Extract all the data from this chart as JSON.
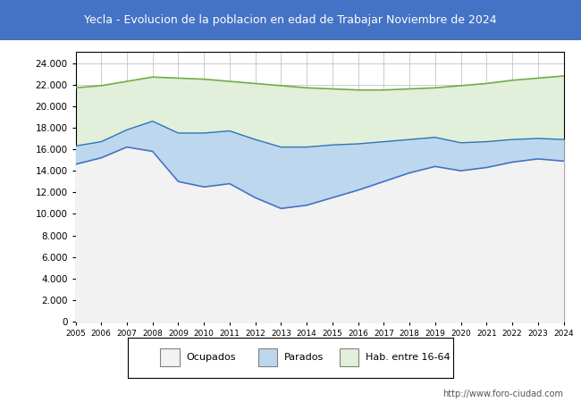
{
  "title": "Yecla - Evolucion de la poblacion en edad de Trabajar Noviembre de 2024",
  "title_bg": "#4472c4",
  "title_color": "white",
  "footer_text": "http://www.foro-ciudad.com",
  "legend_items": [
    "Ocupados",
    "Parados",
    "Hab. entre 16-64"
  ],
  "years": [
    2005,
    2006,
    2007,
    2008,
    2009,
    2010,
    2011,
    2012,
    2013,
    2014,
    2015,
    2016,
    2017,
    2018,
    2019,
    2020,
    2021,
    2022,
    2023,
    2024
  ],
  "hab_16_64": [
    21700,
    21900,
    22300,
    22700,
    22600,
    22500,
    22300,
    22100,
    21900,
    21700,
    21600,
    21500,
    21500,
    21600,
    21700,
    21900,
    22100,
    22400,
    22600,
    22800
  ],
  "ocupados": [
    14600,
    15200,
    16200,
    15800,
    13000,
    12500,
    12800,
    11500,
    10500,
    10800,
    11500,
    12200,
    13000,
    13800,
    14400,
    14000,
    14300,
    14800,
    15100,
    14900
  ],
  "parados": [
    1700,
    1500,
    1600,
    2800,
    4500,
    5000,
    4900,
    5400,
    5700,
    5400,
    4900,
    4300,
    3700,
    3100,
    2700,
    2600,
    2400,
    2100,
    1900,
    2000
  ],
  "color_hab": "#e2efda",
  "color_ocupados": "#f2f2f2",
  "color_parados": "#bdd7ee",
  "line_hab": "#70ad47",
  "line_ocupados": "#4472c4",
  "line_parados": "#2e75b6",
  "ylim": [
    0,
    25000
  ],
  "yticks": [
    0,
    2000,
    4000,
    6000,
    8000,
    10000,
    12000,
    14000,
    16000,
    18000,
    20000,
    22000,
    24000
  ],
  "grid_color": "#cccccc",
  "plot_bg": "white",
  "outer_bg": "#ffffff",
  "box_border": "#000000"
}
